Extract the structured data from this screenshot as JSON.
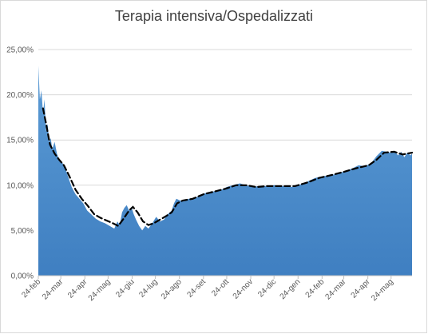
{
  "chart_data": {
    "type": "area",
    "title": "Terapia intensiva/Ospedalizzati",
    "xlabel": "",
    "ylabel": "",
    "ylim": [
      0,
      0.25
    ],
    "yticks": [
      0,
      0.05,
      0.1,
      0.15,
      0.2,
      0.25
    ],
    "ytick_labels": [
      "0,00%",
      "5,00%",
      "10,00%",
      "15,00%",
      "20,00%",
      "25,00%"
    ],
    "xtick_labels": [
      "24-feb",
      "24-mar",
      "24-apr",
      "24-mag",
      "24-giu",
      "24-lug",
      "24-ago",
      "24-set",
      "24-ott",
      "24-nov",
      "24-dic",
      "24-gen",
      "24-feb",
      "24-mar",
      "24-apr",
      "24-mag"
    ],
    "x_start": "2020-02-24",
    "x_end": "2021-06-20",
    "grid": true,
    "legend": "none",
    "colors": {
      "area_top": "#5b9bd5",
      "area_bottom": "#3f7fc1",
      "trend": "#000000",
      "grid": "#d9d9d9"
    },
    "series": [
      {
        "type": "area",
        "points": [
          [
            "2020-02-24",
            0.232
          ],
          [
            "2020-02-26",
            0.195
          ],
          [
            "2020-02-28",
            0.205
          ],
          [
            "2020-03-01",
            0.18
          ],
          [
            "2020-03-03",
            0.195
          ],
          [
            "2020-03-05",
            0.16
          ],
          [
            "2020-03-07",
            0.168
          ],
          [
            "2020-03-09",
            0.148
          ],
          [
            "2020-03-11",
            0.152
          ],
          [
            "2020-03-13",
            0.14
          ],
          [
            "2020-03-16",
            0.148
          ],
          [
            "2020-03-19",
            0.135
          ],
          [
            "2020-03-22",
            0.128
          ],
          [
            "2020-03-26",
            0.125
          ],
          [
            "2020-03-30",
            0.118
          ],
          [
            "2020-04-03",
            0.108
          ],
          [
            "2020-04-07",
            0.098
          ],
          [
            "2020-04-12",
            0.09
          ],
          [
            "2020-04-17",
            0.085
          ],
          [
            "2020-04-22",
            0.08
          ],
          [
            "2020-04-27",
            0.072
          ],
          [
            "2020-05-02",
            0.068
          ],
          [
            "2020-05-08",
            0.063
          ],
          [
            "2020-05-14",
            0.06
          ],
          [
            "2020-05-20",
            0.058
          ],
          [
            "2020-05-26",
            0.055
          ],
          [
            "2020-06-01",
            0.052
          ],
          [
            "2020-06-05",
            0.06
          ],
          [
            "2020-06-08",
            0.056
          ],
          [
            "2020-06-11",
            0.07
          ],
          [
            "2020-06-14",
            0.075
          ],
          [
            "2020-06-17",
            0.078
          ],
          [
            "2020-06-20",
            0.072
          ],
          [
            "2020-06-23",
            0.076
          ],
          [
            "2020-06-26",
            0.068
          ],
          [
            "2020-06-29",
            0.062
          ],
          [
            "2020-07-03",
            0.055
          ],
          [
            "2020-07-07",
            0.05
          ],
          [
            "2020-07-11",
            0.055
          ],
          [
            "2020-07-15",
            0.052
          ],
          [
            "2020-07-20",
            0.058
          ],
          [
            "2020-07-25",
            0.065
          ],
          [
            "2020-07-30",
            0.06
          ],
          [
            "2020-08-04",
            0.062
          ],
          [
            "2020-08-09",
            0.068
          ],
          [
            "2020-08-14",
            0.072
          ],
          [
            "2020-08-17",
            0.08
          ],
          [
            "2020-08-20",
            0.085
          ],
          [
            "2020-08-25",
            0.083
          ],
          [
            "2020-08-30",
            0.082
          ],
          [
            "2020-09-05",
            0.085
          ],
          [
            "2020-09-12",
            0.086
          ],
          [
            "2020-09-20",
            0.088
          ],
          [
            "2020-09-28",
            0.092
          ],
          [
            "2020-10-06",
            0.093
          ],
          [
            "2020-10-15",
            0.094
          ],
          [
            "2020-10-24",
            0.098
          ],
          [
            "2020-11-01",
            0.1
          ],
          [
            "2020-11-10",
            0.102
          ],
          [
            "2020-11-18",
            0.1
          ],
          [
            "2020-11-26",
            0.098
          ],
          [
            "2020-12-05",
            0.099
          ],
          [
            "2020-12-15",
            0.099
          ],
          [
            "2020-12-25",
            0.1
          ],
          [
            "2021-01-05",
            0.099
          ],
          [
            "2021-01-15",
            0.098
          ],
          [
            "2021-01-25",
            0.1
          ],
          [
            "2021-02-05",
            0.104
          ],
          [
            "2021-02-15",
            0.108
          ],
          [
            "2021-02-25",
            0.11
          ],
          [
            "2021-03-07",
            0.111
          ],
          [
            "2021-03-17",
            0.113
          ],
          [
            "2021-03-27",
            0.116
          ],
          [
            "2021-04-05",
            0.119
          ],
          [
            "2021-04-12",
            0.122
          ],
          [
            "2021-04-20",
            0.121
          ],
          [
            "2021-04-28",
            0.124
          ],
          [
            "2021-05-05",
            0.132
          ],
          [
            "2021-05-12",
            0.138
          ],
          [
            "2021-05-18",
            0.137
          ],
          [
            "2021-05-23",
            0.136
          ],
          [
            "2021-05-28",
            0.138
          ],
          [
            "2021-06-02",
            0.133
          ],
          [
            "2021-06-06",
            0.137
          ],
          [
            "2021-06-10",
            0.131
          ],
          [
            "2021-06-14",
            0.136
          ],
          [
            "2021-06-18",
            0.133
          ],
          [
            "2021-06-20",
            0.135
          ]
        ]
      },
      {
        "type": "line",
        "style": "dashed",
        "points": [
          [
            "2020-03-01",
            0.185
          ],
          [
            "2020-03-05",
            0.168
          ],
          [
            "2020-03-10",
            0.145
          ],
          [
            "2020-03-16",
            0.135
          ],
          [
            "2020-03-22",
            0.128
          ],
          [
            "2020-03-28",
            0.122
          ],
          [
            "2020-04-04",
            0.11
          ],
          [
            "2020-04-12",
            0.095
          ],
          [
            "2020-04-20",
            0.085
          ],
          [
            "2020-04-28",
            0.077
          ],
          [
            "2020-05-06",
            0.068
          ],
          [
            "2020-05-14",
            0.064
          ],
          [
            "2020-05-22",
            0.061
          ],
          [
            "2020-05-30",
            0.058
          ],
          [
            "2020-06-06",
            0.055
          ],
          [
            "2020-06-13",
            0.063
          ],
          [
            "2020-06-20",
            0.072
          ],
          [
            "2020-06-25",
            0.076
          ],
          [
            "2020-07-01",
            0.07
          ],
          [
            "2020-07-08",
            0.06
          ],
          [
            "2020-07-15",
            0.056
          ],
          [
            "2020-07-22",
            0.058
          ],
          [
            "2020-07-30",
            0.062
          ],
          [
            "2020-08-07",
            0.066
          ],
          [
            "2020-08-14",
            0.07
          ],
          [
            "2020-08-21",
            0.08
          ],
          [
            "2020-08-28",
            0.083
          ],
          [
            "2020-09-10",
            0.085
          ],
          [
            "2020-09-24",
            0.09
          ],
          [
            "2020-10-08",
            0.093
          ],
          [
            "2020-10-22",
            0.096
          ],
          [
            "2020-11-05",
            0.1
          ],
          [
            "2020-11-18",
            0.1
          ],
          [
            "2020-12-01",
            0.098
          ],
          [
            "2020-12-15",
            0.099
          ],
          [
            "2021-01-01",
            0.099
          ],
          [
            "2021-01-20",
            0.099
          ],
          [
            "2021-02-05",
            0.103
          ],
          [
            "2021-02-20",
            0.108
          ],
          [
            "2021-03-07",
            0.111
          ],
          [
            "2021-03-25",
            0.115
          ],
          [
            "2021-04-10",
            0.119
          ],
          [
            "2021-04-25",
            0.122
          ],
          [
            "2021-05-05",
            0.128
          ],
          [
            "2021-05-15",
            0.136
          ],
          [
            "2021-05-28",
            0.137
          ],
          [
            "2021-06-08",
            0.134
          ],
          [
            "2021-06-20",
            0.136
          ]
        ]
      }
    ]
  }
}
